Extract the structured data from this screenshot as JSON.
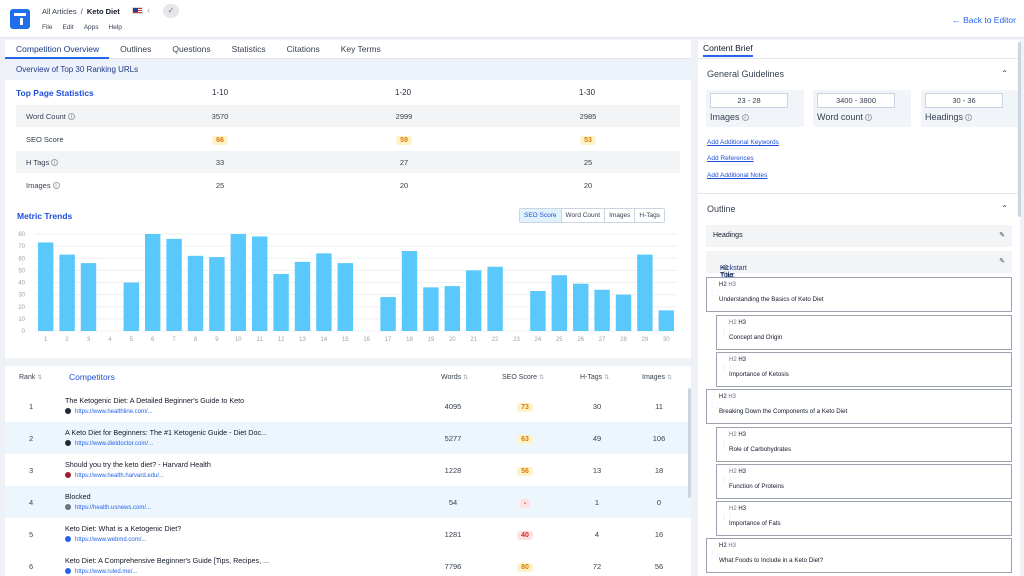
{
  "header": {
    "breadcrumb_parent": "All Articles",
    "breadcrumb_sep": "/",
    "breadcrumb_current": "Keto Diet",
    "menu": [
      "File",
      "Edit",
      "Apps",
      "Help"
    ],
    "back_link": "← Back to Editor",
    "share_icon": "‹",
    "check_icon": "✓"
  },
  "tabs": [
    "Competition Overview",
    "Outlines",
    "Questions",
    "Statistics",
    "Citations",
    "Key Terms"
  ],
  "overview_title": "Overview of Top 30 Ranking URLs",
  "top_stats": {
    "title": "Top Page Statistics",
    "columns": [
      "1-10",
      "1-20",
      "1-30"
    ],
    "rows": [
      {
        "label": "Word Count",
        "values": [
          "3570",
          "2999",
          "2985"
        ]
      },
      {
        "label": "SEO Score",
        "values": [
          "66",
          "59",
          "53"
        ]
      },
      {
        "label": "H Tags",
        "values": [
          "33",
          "27",
          "25"
        ]
      },
      {
        "label": "Images",
        "values": [
          "25",
          "20",
          "20"
        ]
      }
    ]
  },
  "metric_trends": {
    "title": "Metric Trends",
    "toggles": [
      "SEO Score",
      "Word Count",
      "Images",
      "H-Tags"
    ]
  },
  "chart_data": {
    "type": "bar",
    "categories": [
      "1",
      "2",
      "3",
      "4",
      "5",
      "6",
      "7",
      "8",
      "9",
      "10",
      "11",
      "12",
      "13",
      "14",
      "15",
      "16",
      "17",
      "18",
      "19",
      "20",
      "21",
      "22",
      "23",
      "24",
      "25",
      "26",
      "27",
      "28",
      "29",
      "30"
    ],
    "values": [
      73,
      63,
      56,
      0,
      40,
      80,
      76,
      62,
      61,
      80,
      78,
      47,
      57,
      64,
      56,
      0,
      28,
      66,
      36,
      37,
      50,
      53,
      0,
      33,
      46,
      39,
      34,
      30,
      63,
      17
    ],
    "ylim": [
      0,
      80
    ],
    "yticks": [
      "80",
      "70",
      "60",
      "50",
      "40",
      "30",
      "20",
      "10",
      "0"
    ],
    "bar_color": "#5ac8fa",
    "grid": true
  },
  "competitors": {
    "headers": {
      "rank": "Rank",
      "title": "Competitors",
      "words": "Words",
      "seo": "SEO Score",
      "htags": "H-Tags",
      "images": "Images"
    },
    "sort_glyph": "⇅",
    "rows": [
      {
        "rank": "1",
        "title": "The Ketogenic Diet: A Detailed Beginner's Guide to Keto",
        "url": "https://www.healthline.com/...",
        "words": "4095",
        "seo": "73",
        "htags": "30",
        "images": "11"
      },
      {
        "rank": "2",
        "title": "A Keto Diet for Beginners: The #1 Ketogenic Guide - Diet Doc...",
        "url": "https://www.dietdoctor.com/...",
        "words": "5277",
        "seo": "63",
        "htags": "49",
        "images": "106"
      },
      {
        "rank": "3",
        "title": "Should you try the keto diet? - Harvard Health",
        "url": "https://www.health.harvard.edu/...",
        "words": "1228",
        "seo": "56",
        "htags": "13",
        "images": "18"
      },
      {
        "rank": "4",
        "title": "Blocked",
        "url": "https://health.usnews.com/...",
        "words": "54",
        "seo": "-",
        "htags": "1",
        "images": "0"
      },
      {
        "rank": "5",
        "title": "Keto Diet: What is a Ketogenic Diet?",
        "url": "https://www.webmd.com/...",
        "words": "1281",
        "seo": "40",
        "htags": "4",
        "images": "16"
      },
      {
        "rank": "6",
        "title": "Keto Diet: A Comprehensive Beginner's Guide [Tips, Recipes, ...",
        "url": "https://www.ruled.me/...",
        "words": "7796",
        "seo": "80",
        "htags": "72",
        "images": "56"
      }
    ]
  },
  "brief": {
    "tab": "Content Brief",
    "guidelines_title": "General Guidelines",
    "guidelines": [
      {
        "range": "23 - 28",
        "label": "Images"
      },
      {
        "range": "3400 - 3800",
        "label": "Word count"
      },
      {
        "range": "30 - 36",
        "label": "Headings"
      }
    ],
    "links": [
      "Add Additional Keywords",
      "Add References",
      "Add Additional Notes"
    ],
    "outline_title": "Outline",
    "headings_label": "Headings",
    "h1_label": "H1 Title:",
    "h1_value": "Kickstart Your Keto Journey Today",
    "h2": "H2",
    "h3": "H3",
    "outline_items": [
      {
        "level": "h2",
        "text": "Understanding the Basics of Keto Diet"
      },
      {
        "level": "h3",
        "text": "Concept and Origin"
      },
      {
        "level": "h3",
        "text": "Importance of Ketosis"
      },
      {
        "level": "h2",
        "text": "Breaking Down the Components of a Keto Diet"
      },
      {
        "level": "h3",
        "text": "Role of Carbohydrates"
      },
      {
        "level": "h3",
        "text": "Function of Proteins"
      },
      {
        "level": "h3",
        "text": "Importance of Fats"
      },
      {
        "level": "h2",
        "text": "What Foods to Include in a Keto Diet?"
      }
    ]
  }
}
